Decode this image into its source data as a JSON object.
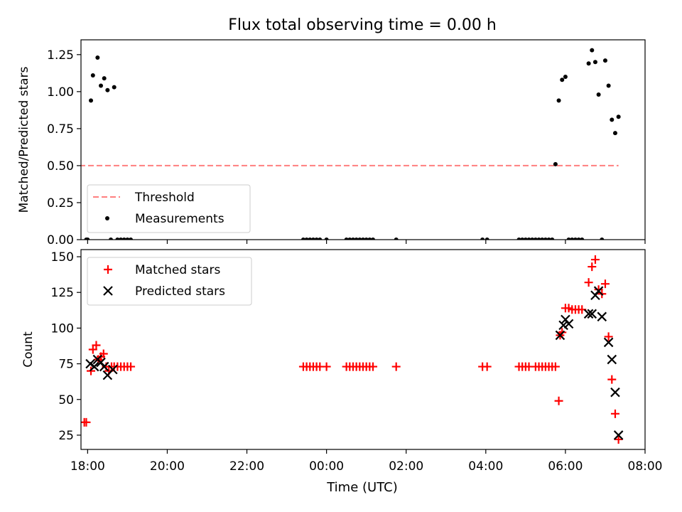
{
  "figure": {
    "title": "Flux total observing time = 0.00 h",
    "xlabel": "Time (UTC)"
  },
  "chart_data": [
    {
      "type": "scatter",
      "title": "Flux total observing time = 0.00 h",
      "xlabel": "",
      "ylabel": "Matched/Predicted stars",
      "xlim": [
        "17:50",
        "08:00"
      ],
      "ylim": [
        0,
        1.35
      ],
      "yticks": [
        0.0,
        0.25,
        0.5,
        0.75,
        1.0,
        1.25
      ],
      "ytick_labels": [
        "0.00",
        "0.25",
        "0.50",
        "0.75",
        "1.00",
        "1.25"
      ],
      "grid": false,
      "legend_position": "lower-left",
      "series": [
        {
          "name": "Threshold",
          "style": "dashed-line",
          "color": "#ff7f7f",
          "x": [
            "17:35",
            "07:20"
          ],
          "y": [
            0.5,
            0.5
          ]
        },
        {
          "name": "Measurements",
          "style": "dot",
          "color": "#000000",
          "x": [
            "17:35",
            "17:58",
            "18:00",
            "18:05",
            "18:08",
            "18:15",
            "18:20",
            "18:25",
            "18:30",
            "18:35",
            "18:40",
            "18:45",
            "18:50",
            "18:55",
            "19:00",
            "19:05",
            "23:25",
            "23:30",
            "23:35",
            "23:40",
            "23:45",
            "23:50",
            "00:00",
            "00:30",
            "00:35",
            "00:40",
            "00:45",
            "00:50",
            "00:55",
            "01:00",
            "01:05",
            "01:10",
            "01:45",
            "03:55",
            "04:02",
            "04:50",
            "04:55",
            "05:00",
            "05:05",
            "05:10",
            "05:15",
            "05:20",
            "05:25",
            "05:30",
            "05:35",
            "05:40",
            "05:45",
            "05:50",
            "05:55",
            "06:00",
            "06:05",
            "06:10",
            "06:15",
            "06:20",
            "06:25",
            "06:35",
            "06:40",
            "06:45",
            "06:50",
            "06:55",
            "07:00",
            "07:05",
            "07:10",
            "07:15",
            "07:20"
          ],
          "y": [
            0,
            0,
            0,
            0.94,
            1.11,
            1.23,
            1.04,
            1.09,
            1.01,
            0,
            1.03,
            0,
            0,
            0,
            0,
            0,
            0,
            0,
            0,
            0,
            0,
            0,
            0,
            0,
            0,
            0,
            0,
            0,
            0,
            0,
            0,
            0,
            0,
            0,
            0,
            0,
            0,
            0,
            0,
            0,
            0,
            0,
            0,
            0,
            0,
            0,
            0.51,
            0.94,
            1.08,
            1.1,
            0,
            0,
            0,
            0,
            0,
            1.19,
            1.28,
            1.2,
            0.98,
            0,
            1.21,
            1.04,
            0.81,
            0.72,
            0.83
          ]
        }
      ]
    },
    {
      "type": "scatter",
      "title": "",
      "xlabel": "Time (UTC)",
      "ylabel": "Count",
      "xlim": [
        "17:50",
        "08:00"
      ],
      "ylim": [
        15,
        155
      ],
      "yticks": [
        25,
        50,
        75,
        100,
        125,
        150
      ],
      "ytick_labels": [
        "25",
        "50",
        "75",
        "100",
        "125",
        "150"
      ],
      "xticks": [
        "18:00",
        "20:00",
        "22:00",
        "00:00",
        "02:00",
        "04:00",
        "06:00",
        "08:00"
      ],
      "grid": false,
      "legend_position": "top-left",
      "series": [
        {
          "name": "Matched stars",
          "marker": "plus",
          "color": "#ff0000",
          "x": [
            "17:35",
            "17:55",
            "17:58",
            "18:05",
            "18:08",
            "18:13",
            "18:16",
            "18:20",
            "18:24",
            "18:28",
            "18:32",
            "18:36",
            "18:40",
            "18:45",
            "18:50",
            "18:55",
            "19:00",
            "19:05",
            "23:25",
            "23:30",
            "23:35",
            "23:40",
            "23:45",
            "23:50",
            "00:00",
            "00:30",
            "00:35",
            "00:40",
            "00:45",
            "00:50",
            "00:55",
            "01:00",
            "01:05",
            "01:10",
            "01:45",
            "03:55",
            "04:02",
            "04:50",
            "04:55",
            "05:00",
            "05:05",
            "05:15",
            "05:20",
            "05:25",
            "05:30",
            "05:35",
            "05:40",
            "05:45",
            "05:50",
            "05:52",
            "05:55",
            "06:00",
            "06:05",
            "06:10",
            "06:15",
            "06:20",
            "06:25",
            "06:35",
            "06:40",
            "06:45",
            "06:50",
            "06:55",
            "07:00",
            "07:05",
            "07:10",
            "07:15",
            "07:20"
          ],
          "y": [
            34,
            34,
            34,
            70,
            85,
            88,
            78,
            80,
            82,
            73,
            70,
            73,
            73,
            73,
            73,
            73,
            73,
            73,
            73,
            73,
            73,
            73,
            73,
            73,
            73,
            73,
            73,
            73,
            73,
            73,
            73,
            73,
            73,
            73,
            73,
            73,
            73,
            73,
            73,
            73,
            73,
            73,
            73,
            73,
            73,
            73,
            73,
            73,
            49,
            95,
            97,
            114,
            114,
            113,
            113,
            113,
            113,
            132,
            143,
            148,
            127,
            124,
            131,
            94,
            64,
            40,
            22
          ]
        },
        {
          "name": "Predicted stars",
          "marker": "x",
          "color": "#000000",
          "x": [
            "18:04",
            "18:10",
            "18:15",
            "18:20",
            "18:25",
            "18:30",
            "18:38",
            "05:52",
            "05:57",
            "06:00",
            "06:05",
            "06:35",
            "06:40",
            "06:45",
            "06:50",
            "06:55",
            "07:05",
            "07:10",
            "07:15",
            "07:20"
          ],
          "y": [
            75,
            73,
            78,
            76,
            73,
            67,
            71,
            95,
            102,
            106,
            103,
            110,
            110,
            123,
            126,
            108,
            90,
            78,
            55,
            25
          ]
        }
      ]
    }
  ]
}
